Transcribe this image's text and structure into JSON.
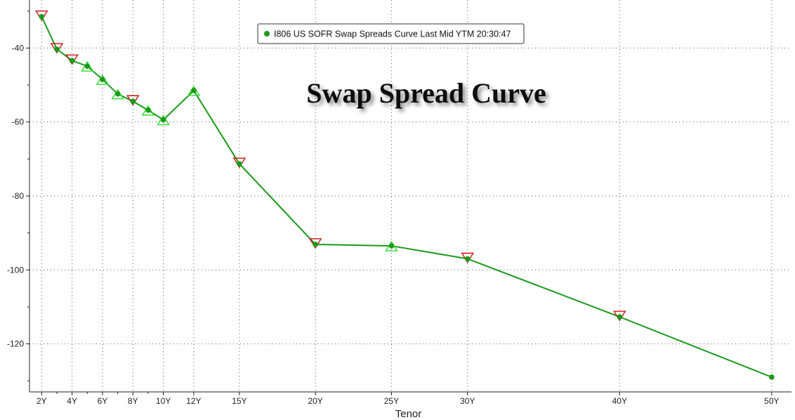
{
  "chart_data": {
    "type": "line",
    "title": "Swap Spread Curve",
    "xlabel": "Tenor",
    "ylabel": "",
    "x_tenors_years": [
      2,
      3,
      4,
      5,
      6,
      7,
      8,
      9,
      10,
      12,
      15,
      20,
      25,
      30,
      40,
      50
    ],
    "x_tick_labels": [
      "2Y",
      "4Y",
      "6Y",
      "8Y",
      "10Y",
      "12Y",
      "15Y",
      "20Y",
      "25Y",
      "30Y",
      "40Y",
      "50Y"
    ],
    "x_tick_values": [
      2,
      4,
      6,
      8,
      10,
      12,
      15,
      20,
      25,
      30,
      40,
      50
    ],
    "ylim": [
      -133,
      -27
    ],
    "y_ticks": [
      -40,
      -60,
      -80,
      -100,
      -120
    ],
    "grid": true,
    "legend_position": "top-center",
    "series": [
      {
        "name": "I806 US SOFR Swap Spreads Curve Last Mid YTM 20:30:47",
        "color": "#1a9a1a",
        "values": [
          -31.5,
          -40.3,
          -43.4,
          -44.9,
          -48.5,
          -52.4,
          -54.4,
          -56.8,
          -59.4,
          -51.5,
          -71.3,
          -93.1,
          -93.5,
          -97.0,
          -112.7,
          -129.0
        ],
        "change_markers": [
          "down",
          "down",
          "down",
          "up",
          "up",
          "up",
          "down",
          "up",
          "up",
          "up",
          "down",
          "down",
          "up",
          "down",
          "down",
          "none"
        ]
      }
    ],
    "marker_colors": {
      "up": "#33dd33",
      "down": "#cc1111"
    }
  }
}
